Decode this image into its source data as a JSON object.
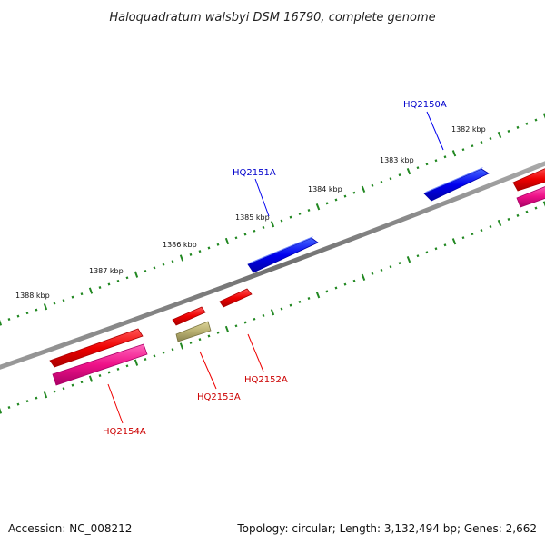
{
  "title": "Haloquadratum walsbyi DSM 16790, complete genome",
  "footer": {
    "accession": "Accession: NC_008212",
    "topology": "Topology: circular; Length: 3,132,494 bp; Genes: 2,662"
  },
  "ticks": [
    "1382 kbp",
    "1383 kbp",
    "1384 kbp",
    "1385 kbp",
    "1386 kbp",
    "1387 kbp",
    "1388 kbp"
  ],
  "genes": [
    {
      "id": "HQ2150A",
      "color": "#0000cc"
    },
    {
      "id": "HQ2151A",
      "color": "#0000cc"
    },
    {
      "id": "HQ2152A",
      "color": "#cc0000"
    },
    {
      "id": "HQ2153A",
      "color": "#cc0000"
    },
    {
      "id": "HQ2154A",
      "color": "#cc0000"
    }
  ],
  "colors": {
    "forward_strand": "#0000ee",
    "reverse_strand": "#ee0000",
    "magenta_feature": "#ee1188",
    "olive_feature": "#b8b070",
    "backbone": "#808080",
    "tick_marks": "#228822"
  }
}
